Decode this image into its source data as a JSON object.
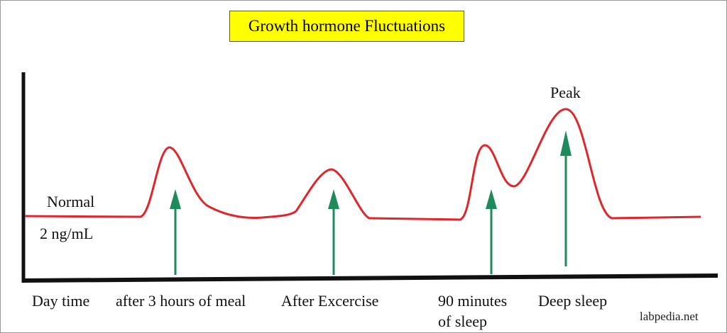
{
  "title": "Growth hormone Fluctuations",
  "baseline_label": "Normal",
  "baseline_value": "2 ng/mL",
  "peak_label": "Peak",
  "events": [
    {
      "label": "Day time"
    },
    {
      "label": "after 3 hours of meal"
    },
    {
      "label": "After Excercise"
    },
    {
      "label": "90 minutes",
      "label2": "of sleep"
    },
    {
      "label": "Deep sleep"
    }
  ],
  "watermark": "labpedia.net",
  "colors": {
    "curve": "#e0262b",
    "arrow": "#1f8a5a",
    "axis": "#111111",
    "title_bg": "#ffff00"
  }
}
